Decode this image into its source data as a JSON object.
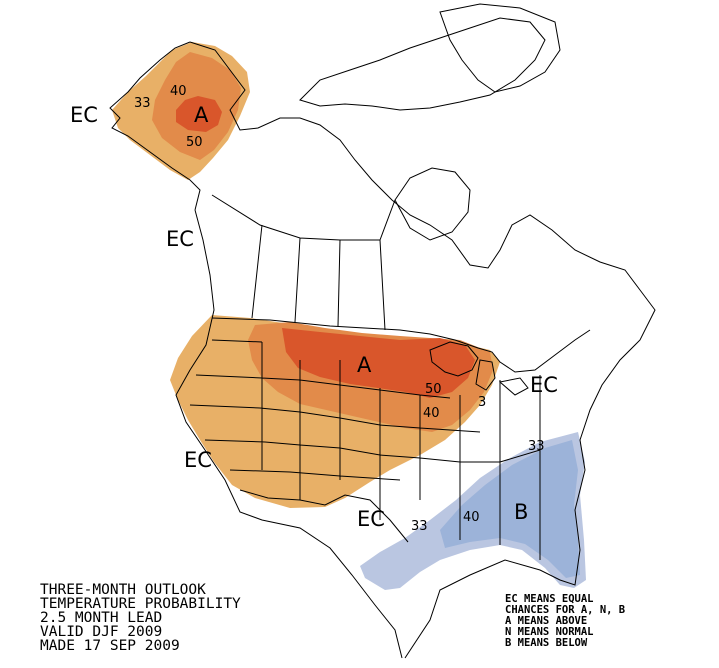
{
  "map": {
    "colors": {
      "above_33": "#e8b067",
      "above_40": "#e28b4a",
      "above_50": "#d9562b",
      "below_33": "#bac6e1",
      "below_40": "#9cb3d9",
      "outline": "#000000"
    },
    "labels": {
      "alaska_center": "A",
      "plains_center": "A",
      "southeast_center": "B",
      "ec_alaska_west": "EC",
      "ec_bc": "EC",
      "ec_southwest": "EC",
      "ec_texas": "EC",
      "ec_northeast": "EC"
    },
    "contours": {
      "ak_33": "33",
      "ak_40": "40",
      "ak_50": "50",
      "gl_50": "50",
      "gl_40": "40",
      "gl_33": "3",
      "se_33_east": "33",
      "se_33_west": "33",
      "se_40": "40"
    }
  },
  "caption": {
    "line1": "THREE-MONTH OUTLOOK",
    "line2": "TEMPERATURE PROBABILITY",
    "line3": "2.5 MONTH LEAD",
    "line4": "VALID DJF 2009",
    "line5": "MADE 17 SEP 2009"
  },
  "legend": {
    "line1": "EC MEANS EQUAL",
    "line2": "CHANCES FOR A, N, B",
    "line3": "A MEANS ABOVE",
    "line4": "N MEANS NORMAL",
    "line5": "B MEANS BELOW"
  }
}
